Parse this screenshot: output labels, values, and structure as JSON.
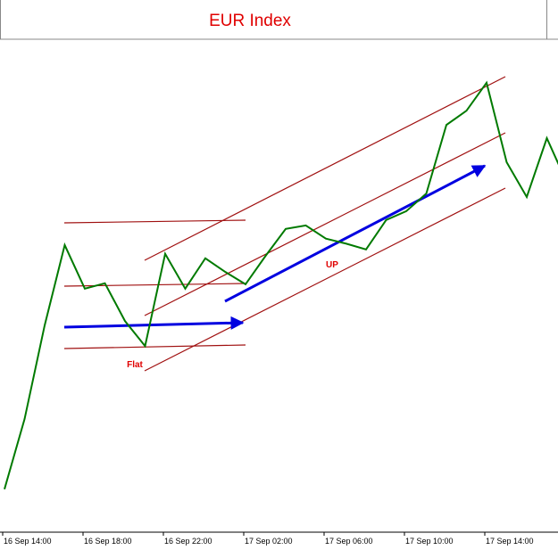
{
  "chart_data": {
    "type": "line",
    "title": "EUR Index",
    "categories": [
      "16 Sep 14:00",
      null,
      null,
      null,
      "16 Sep 18:00",
      null,
      null,
      null,
      "16 Sep 22:00",
      null,
      null,
      null,
      "17 Sep 02:00",
      null,
      null,
      null,
      "17 Sep 06:00",
      null,
      null,
      null,
      "17 Sep 10:00",
      null,
      null,
      null,
      "17 Sep 14:00",
      null,
      null,
      null,
      null
    ],
    "series": [
      {
        "name": "EUR Index",
        "color": "#007a00",
        "values": [
          8.4,
          22.7,
          41.8,
          58.2,
          49.3,
          50.4,
          42.7,
          37.6,
          56.4,
          49.3,
          55.5,
          52.7,
          50.2,
          56.0,
          61.5,
          62.2,
          59.5,
          58.5,
          57.3,
          63.3,
          65.1,
          68.7,
          82.7,
          85.6,
          91.3,
          75.1,
          68.0,
          80.0,
          70.9
        ]
      }
    ],
    "ylim": [
      0,
      100
    ],
    "annotations": [
      "Flat",
      "UP"
    ]
  }
}
